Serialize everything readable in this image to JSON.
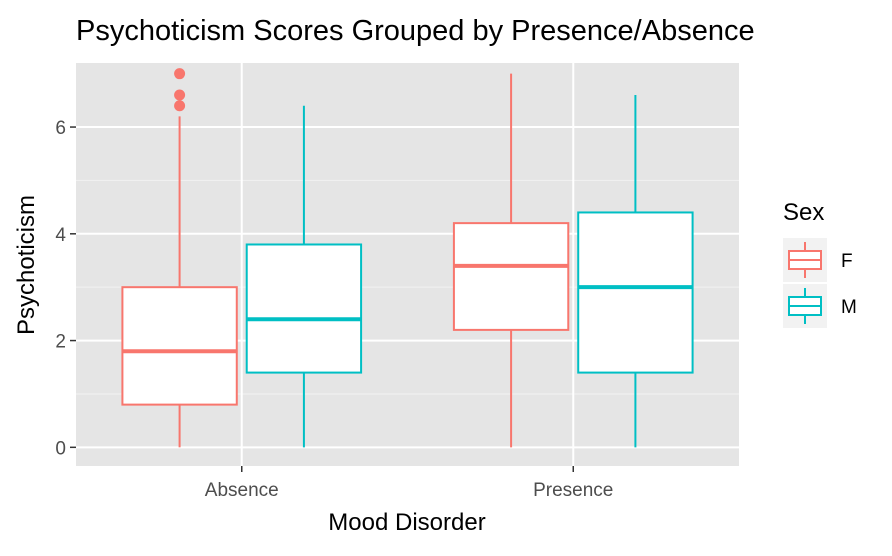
{
  "chart_data": {
    "type": "boxplot",
    "title": "Psychoticism Scores Grouped by Presence/Absence",
    "xlabel": "Mood Disorder",
    "ylabel": "Psychoticism",
    "categories": [
      "Absence",
      "Presence"
    ],
    "ylim": [
      -0.35,
      7.2
    ],
    "yticks": [
      0,
      2,
      4,
      6
    ],
    "grid": true,
    "background": "#e5e5e5",
    "legend": {
      "title": "Sex",
      "placement": "right",
      "entries": [
        "F",
        "M"
      ]
    },
    "series": [
      {
        "name": "F",
        "color": "#f8766d",
        "boxes": [
          {
            "category": "Absence",
            "min": 0,
            "q1": 0.8,
            "median": 1.8,
            "q3": 3.0,
            "max": 6.2,
            "outliers": [
              6.4,
              6.6,
              7.0
            ]
          },
          {
            "category": "Presence",
            "min": 0,
            "q1": 2.2,
            "median": 3.4,
            "q3": 4.2,
            "max": 7.0,
            "outliers": []
          }
        ]
      },
      {
        "name": "M",
        "color": "#00bfc4",
        "boxes": [
          {
            "category": "Absence",
            "min": 0,
            "q1": 1.4,
            "median": 2.4,
            "q3": 3.8,
            "max": 6.4,
            "outliers": []
          },
          {
            "category": "Presence",
            "min": 0,
            "q1": 1.4,
            "median": 3.0,
            "q3": 4.4,
            "max": 6.6,
            "outliers": []
          }
        ]
      }
    ]
  }
}
